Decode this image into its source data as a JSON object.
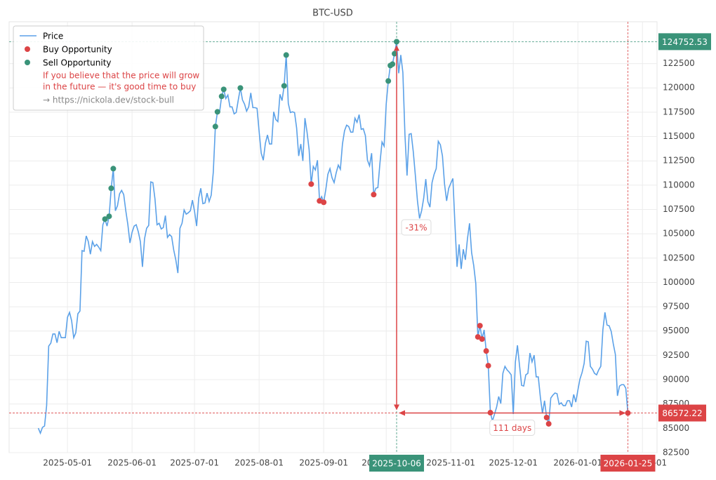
{
  "chart_data": {
    "type": "line",
    "title": "BTC-USD",
    "x": [
      "2025-04-17",
      "2025-04-18",
      "2025-04-19",
      "2025-04-20",
      "2025-04-21",
      "2025-04-22",
      "2025-04-23",
      "2025-04-24",
      "2025-04-25",
      "2025-04-26",
      "2025-04-27",
      "2025-04-28",
      "2025-04-29",
      "2025-04-30",
      "2025-05-01",
      "2025-05-02",
      "2025-05-03",
      "2025-05-04",
      "2025-05-05",
      "2025-05-06",
      "2025-05-07",
      "2025-05-08",
      "2025-05-09",
      "2025-05-10",
      "2025-05-11",
      "2025-05-12",
      "2025-05-13",
      "2025-05-14",
      "2025-05-15",
      "2025-05-16",
      "2025-05-17",
      "2025-05-18",
      "2025-05-19",
      "2025-05-20",
      "2025-05-21",
      "2025-05-22",
      "2025-05-23",
      "2025-05-24",
      "2025-05-25",
      "2025-05-26",
      "2025-05-27",
      "2025-05-28",
      "2025-05-29",
      "2025-05-30",
      "2025-05-31",
      "2025-06-01",
      "2025-06-02",
      "2025-06-03",
      "2025-06-04",
      "2025-06-05",
      "2025-06-06",
      "2025-06-07",
      "2025-06-08",
      "2025-06-09",
      "2025-06-10",
      "2025-06-11",
      "2025-06-12",
      "2025-06-13",
      "2025-06-14",
      "2025-06-15",
      "2025-06-16",
      "2025-06-17",
      "2025-06-18",
      "2025-06-19",
      "2025-06-20",
      "2025-06-21",
      "2025-06-22",
      "2025-06-23",
      "2025-06-24",
      "2025-06-25",
      "2025-06-26",
      "2025-06-27",
      "2025-06-28",
      "2025-06-29",
      "2025-06-30",
      "2025-07-01",
      "2025-07-02",
      "2025-07-03",
      "2025-07-04",
      "2025-07-05",
      "2025-07-06",
      "2025-07-07",
      "2025-07-08",
      "2025-07-09",
      "2025-07-10",
      "2025-07-11",
      "2025-07-12",
      "2025-07-13",
      "2025-07-14",
      "2025-07-15",
      "2025-07-16",
      "2025-07-17",
      "2025-07-18",
      "2025-07-19",
      "2025-07-20",
      "2025-07-21",
      "2025-07-22",
      "2025-07-23",
      "2025-07-24",
      "2025-07-25",
      "2025-07-26",
      "2025-07-27",
      "2025-07-28",
      "2025-07-29",
      "2025-07-30",
      "2025-07-31",
      "2025-08-01",
      "2025-08-02",
      "2025-08-03",
      "2025-08-04",
      "2025-08-05",
      "2025-08-06",
      "2025-08-07",
      "2025-08-08",
      "2025-08-09",
      "2025-08-10",
      "2025-08-11",
      "2025-08-12",
      "2025-08-13",
      "2025-08-14",
      "2025-08-15",
      "2025-08-16",
      "2025-08-17",
      "2025-08-18",
      "2025-08-19",
      "2025-08-20",
      "2025-08-21",
      "2025-08-22",
      "2025-08-23",
      "2025-08-24",
      "2025-08-25",
      "2025-08-26",
      "2025-08-27",
      "2025-08-28",
      "2025-08-29",
      "2025-08-30",
      "2025-08-31",
      "2025-09-01",
      "2025-09-02",
      "2025-09-03",
      "2025-09-04",
      "2025-09-05",
      "2025-09-06",
      "2025-09-07",
      "2025-09-08",
      "2025-09-09",
      "2025-09-10",
      "2025-09-11",
      "2025-09-12",
      "2025-09-13",
      "2025-09-14",
      "2025-09-15",
      "2025-09-16",
      "2025-09-17",
      "2025-09-18",
      "2025-09-19",
      "2025-09-20",
      "2025-09-21",
      "2025-09-22",
      "2025-09-23",
      "2025-09-24",
      "2025-09-25",
      "2025-09-26",
      "2025-09-27",
      "2025-09-28",
      "2025-09-29",
      "2025-09-30",
      "2025-10-01",
      "2025-10-02",
      "2025-10-03",
      "2025-10-04",
      "2025-10-05",
      "2025-10-06",
      "2025-10-07",
      "2025-10-08",
      "2025-10-09",
      "2025-10-10",
      "2025-10-11",
      "2025-10-12",
      "2025-10-13",
      "2025-10-14",
      "2025-10-15",
      "2025-10-16",
      "2025-10-17",
      "2025-10-18",
      "2025-10-19",
      "2025-10-20",
      "2025-10-21",
      "2025-10-22",
      "2025-10-23",
      "2025-10-24",
      "2025-10-25",
      "2025-10-26",
      "2025-10-27",
      "2025-10-28",
      "2025-10-29",
      "2025-10-30",
      "2025-10-31",
      "2025-11-01",
      "2025-11-02",
      "2025-11-03",
      "2025-11-04",
      "2025-11-05",
      "2025-11-06",
      "2025-11-07",
      "2025-11-08",
      "2025-11-09",
      "2025-11-10",
      "2025-11-11",
      "2025-11-12",
      "2025-11-13",
      "2025-11-14",
      "2025-11-15",
      "2025-11-16",
      "2025-11-17",
      "2025-11-18",
      "2025-11-19",
      "2025-11-20",
      "2025-11-21",
      "2025-11-22",
      "2025-11-23",
      "2025-11-24",
      "2025-11-25",
      "2025-11-26",
      "2025-11-27",
      "2025-11-28",
      "2025-11-29",
      "2025-11-30",
      "2025-12-01",
      "2025-12-02",
      "2025-12-03",
      "2025-12-04",
      "2025-12-05",
      "2025-12-06",
      "2025-12-07",
      "2025-12-08",
      "2025-12-09",
      "2025-12-10",
      "2025-12-11",
      "2025-12-12",
      "2025-12-13",
      "2025-12-14",
      "2025-12-15",
      "2025-12-16",
      "2025-12-17",
      "2025-12-18",
      "2025-12-19",
      "2025-12-20",
      "2025-12-21",
      "2025-12-22",
      "2025-12-23",
      "2025-12-24",
      "2025-12-25",
      "2025-12-26",
      "2025-12-27",
      "2025-12-28",
      "2025-12-29",
      "2025-12-30",
      "2025-12-31",
      "2026-01-01",
      "2026-01-02",
      "2026-01-03",
      "2026-01-04",
      "2026-01-05",
      "2026-01-06",
      "2026-01-07",
      "2026-01-08",
      "2026-01-09",
      "2026-01-10",
      "2026-01-11",
      "2026-01-12",
      "2026-01-13",
      "2026-01-14",
      "2026-01-15",
      "2026-01-16",
      "2026-01-17",
      "2026-01-18",
      "2026-01-19",
      "2026-01-20",
      "2026-01-21",
      "2026-01-22",
      "2026-01-23",
      "2026-01-24",
      "2026-01-25"
    ],
    "series": [
      {
        "name": "Price",
        "type": "line",
        "color": "#5ba1e8",
        "values": [
          85020,
          84500,
          85100,
          85240,
          87330,
          93460,
          93750,
          94700,
          94700,
          93800,
          94970,
          94320,
          94320,
          94320,
          96410,
          96920,
          96060,
          94320,
          94830,
          96780,
          97060,
          103270,
          103200,
          104780,
          104200,
          102900,
          104200,
          103700,
          103910,
          103630,
          103270,
          105930,
          106510,
          105790,
          106800,
          109680,
          111700,
          107370,
          107880,
          109100,
          109460,
          109030,
          107370,
          105930,
          104060,
          105140,
          105790,
          105930,
          105210,
          104200,
          101600,
          104490,
          105570,
          105860,
          110330,
          110260,
          108600,
          105930,
          106080,
          105500,
          105640,
          106870,
          104630,
          104920,
          104710,
          103340,
          102330,
          100960,
          105570,
          106080,
          107450,
          107020,
          107160,
          107370,
          108460,
          107300,
          105790,
          108670,
          109680,
          108100,
          108170,
          109180,
          108310,
          108960,
          111340,
          116030,
          117540,
          117470,
          119130,
          119850,
          118910,
          119270,
          118050,
          118050,
          117330,
          117470,
          118770,
          119990,
          118770,
          118330,
          117610,
          118050,
          119490,
          117970,
          117970,
          117900,
          115520,
          113290,
          112570,
          114300,
          115160,
          114230,
          114230,
          117540,
          116750,
          116530,
          119340,
          118690,
          120210,
          123380,
          118410,
          117470,
          117540,
          117470,
          115880,
          113000,
          114230,
          112490,
          116890,
          115450,
          113650,
          110110,
          111920,
          111560,
          112570,
          108380,
          108820,
          108240,
          109540,
          111120,
          111700,
          110760,
          110260,
          111270,
          112060,
          111630,
          114230,
          115590,
          116170,
          116030,
          115450,
          115450,
          116890,
          116460,
          117250,
          115740,
          115810,
          115090,
          112570,
          111990,
          113290,
          109030,
          109680,
          109750,
          112280,
          114440,
          114010,
          118330,
          120710,
          122300,
          122440,
          123520,
          124752.53,
          121500,
          123380,
          121580,
          115160,
          110980,
          115230,
          115300,
          113430,
          110980,
          108380,
          106580,
          107370,
          108670,
          110620,
          108310,
          107740,
          110260,
          111120,
          111700,
          114510,
          114150,
          113000,
          110110,
          108380,
          109680,
          110190,
          110690,
          105930,
          101600,
          103910,
          101390,
          103410,
          102330,
          104490,
          106080,
          103050,
          101750,
          99880,
          94400,
          95550,
          94180,
          95120,
          92950,
          91440,
          86610,
          85750,
          86470,
          87190,
          88270,
          87550,
          90650,
          91370,
          91010,
          90790,
          90500,
          86470,
          91830,
          93530,
          91440,
          89420,
          89350,
          90500,
          90650,
          92740,
          91830,
          92520,
          90290,
          90290,
          88200,
          86540,
          87840,
          86110,
          85460,
          88120,
          88410,
          88630,
          88560,
          87470,
          87620,
          87330,
          87330,
          87840,
          87840,
          87190,
          88480,
          87690,
          88920,
          90070,
          90720,
          91660,
          93960,
          93890,
          91370,
          91080,
          90650,
          90500,
          91010,
          91370,
          95120,
          96920,
          95620,
          95550,
          94970,
          93680,
          92590,
          88340,
          89350,
          89490,
          89490,
          89130,
          86572.22
        ]
      },
      {
        "name": "Buy Opportunity",
        "type": "scatter",
        "color": "#dc4446",
        "x": [
          "2025-08-26",
          "2025-08-30",
          "2025-09-01",
          "2025-09-25",
          "2025-11-14",
          "2025-11-15",
          "2025-11-16",
          "2025-11-18",
          "2025-11-19",
          "2025-11-20",
          "2025-12-17",
          "2025-12-18",
          "2026-01-25"
        ],
        "values": [
          110110,
          108380,
          108240,
          109030,
          94400,
          95550,
          94180,
          92950,
          91440,
          86610,
          86110,
          85460,
          86572.22
        ]
      },
      {
        "name": "Sell Opportunity",
        "type": "scatter",
        "color": "#3a9379",
        "x": [
          "2025-05-19",
          "2025-05-21",
          "2025-05-22",
          "2025-05-23",
          "2025-07-11",
          "2025-07-12",
          "2025-07-14",
          "2025-07-15",
          "2025-07-23",
          "2025-08-13",
          "2025-08-14",
          "2025-10-02",
          "2025-10-03",
          "2025-10-04",
          "2025-10-05",
          "2025-10-06"
        ],
        "values": [
          106510,
          106800,
          109680,
          111700,
          116030,
          117540,
          119130,
          119850,
          119990,
          120210,
          123380,
          120710,
          122300,
          122440,
          123520,
          124752.53
        ]
      }
    ],
    "xlim": [
      "2025-04-03",
      "2026-02-08"
    ],
    "xticks": [
      "2025-05-01",
      "2025-06-01",
      "2025-07-01",
      "2025-08-01",
      "2025-09-01",
      "2025-10-01",
      "2025-11-01",
      "2025-12-01",
      "2026-01-01",
      "2026-02-01"
    ],
    "ylim": [
      82500,
      126800
    ],
    "yticks": [
      82500,
      85000,
      87500,
      90000,
      92500,
      95000,
      97500,
      100000,
      102500,
      105000,
      107500,
      110000,
      112500,
      115000,
      117500,
      120000,
      122500
    ],
    "grid": true,
    "legend": "upper left",
    "note": [
      "If you believe that the price will grow",
      "in the future — it's good time to buy"
    ],
    "link": "→ https://nickola.dev/stock-bull",
    "peak": {
      "date": "2025-10-06",
      "value": 124752.53
    },
    "last": {
      "date": "2026-01-25",
      "value": 86572.22
    },
    "drop": {
      "value": -31,
      "label": "-31%"
    },
    "duration": {
      "value": 111,
      "label": "111 days"
    }
  }
}
